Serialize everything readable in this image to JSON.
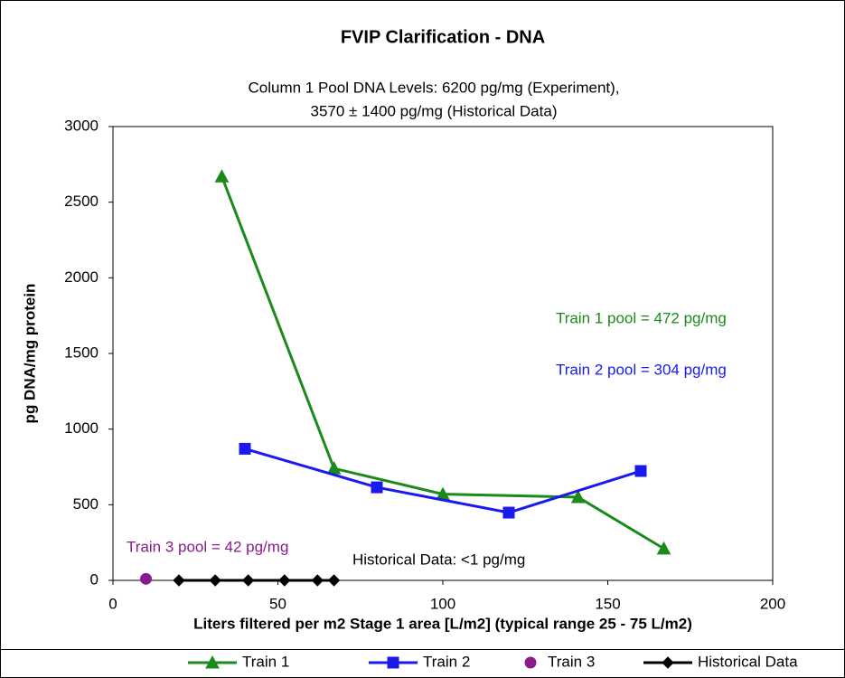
{
  "chart_data": {
    "type": "line",
    "title": "FVIP Clarification - DNA",
    "subtitle": [
      "Column 1 Pool DNA Levels:  6200 pg/mg (Experiment),",
      "3570 ± 1400 pg/mg (Historical Data)"
    ],
    "xlabel": "Liters filtered per m2 Stage 1 area [L/m2] (typical range 25 - 75 L/m2)",
    "ylabel": "pg DNA/mg protein",
    "xlim": [
      0,
      200
    ],
    "xticks": [
      0,
      50,
      100,
      150,
      200
    ],
    "ylim": [
      0,
      3000
    ],
    "yticks": [
      0,
      500,
      1000,
      1500,
      2000,
      2500,
      3000
    ],
    "series": [
      {
        "name": "Train 1",
        "color": "#1a8a1a",
        "marker": "triangle",
        "line": true,
        "x": [
          33,
          67,
          100,
          141,
          167
        ],
        "values": [
          2670,
          740,
          570,
          550,
          210
        ]
      },
      {
        "name": "Train 2",
        "color": "#1a1aee",
        "marker": "square",
        "line": true,
        "x": [
          40,
          80,
          120,
          160
        ],
        "values": [
          870,
          615,
          448,
          723
        ]
      },
      {
        "name": "Train 3",
        "color": "#8b1a8b",
        "marker": "circle",
        "line": false,
        "x": [
          10
        ],
        "values": [
          10
        ]
      },
      {
        "name": "Historical Data",
        "color": "#000000",
        "marker": "diamond",
        "line": true,
        "x": [
          20,
          31,
          41,
          52,
          62,
          67
        ],
        "values": [
          0,
          0,
          0,
          0,
          0,
          0
        ]
      }
    ],
    "annotations": [
      {
        "text": "Train 1 pool = 472 pg/mg",
        "color": "#1a8a1a"
      },
      {
        "text": "Train 2 pool = 304 pg/mg",
        "color": "#1a1aee"
      },
      {
        "text": "Train 3 pool = 42 pg/mg",
        "color": "#8b1a8b"
      },
      {
        "text": "Historical Data: <1  pg/mg",
        "color": "#000000"
      }
    ]
  }
}
